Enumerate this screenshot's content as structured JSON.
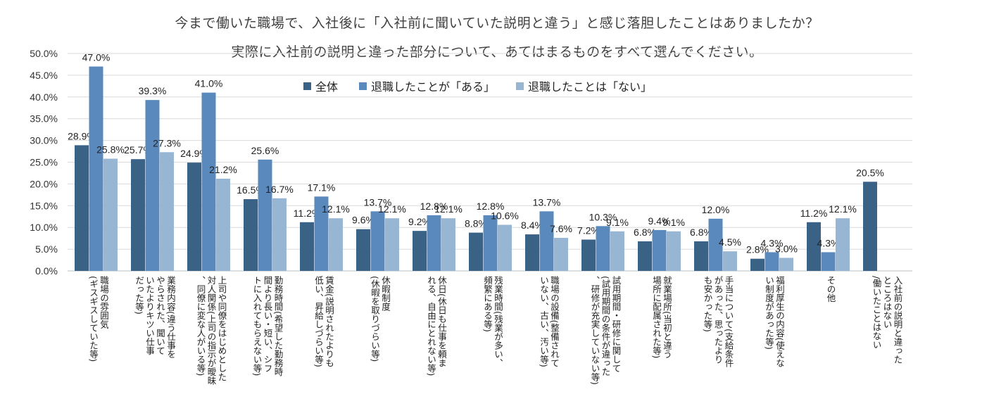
{
  "chart_data": {
    "type": "bar",
    "title": "今まで働いた職場で、入社後に「入社前に聞いていた説明と違う」と感じ落胆したことはありましたか？",
    "subtitle": "実際に入社前の説明と違った部分について、あてはまるものをすべて選んでください。",
    "ylim": [
      0,
      50
    ],
    "yticks": [
      "0.0%",
      "5.0%",
      "10.0%",
      "15.0%",
      "20.0%",
      "25.0%",
      "30.0%",
      "35.0%",
      "40.0%",
      "45.0%",
      "50.0%"
    ],
    "categories": [
      "職場の雰囲気\n(ギスギスしていた等)",
      "業務内容(違う仕事を\nやらされた、聞いて\nいたよりキツい仕事\nだった等)",
      "上司や同僚をはじめとした\n対人関係(上司の指示が曖昧\n、同僚に変な人がいる等)",
      "勤務時間(希望した勤務時\n間より長い・短い、シフ\nトに入れてもらえない等)",
      "賃金(説明されたよりも\n低い、昇給しづらい等)",
      "休暇制度\n(休暇を取りづらい等)",
      "休日(休日も仕事を頼ま\nれる、自由にとれない等)",
      "残業時間(残業が多い、\n頻繁にある等)",
      "職場の設備(整備されて\nいない、古い、汚い等)",
      "試用期間・研修に関して\n(試用期間の条件が違った\n、研修が充実していない等)",
      "就業場所(当初と違う\n場所に配属された等)",
      "手当について(支給条件\nがあった、思ったより\nも安かった等)",
      "福利厚生の内容(使えな\nい制度があった等)",
      "その他",
      "入社前の説明と違った\nところはない\n/働いたことはない"
    ],
    "series": [
      {
        "name": "全体",
        "color": "#3a6186",
        "values": [
          28.9,
          25.7,
          24.9,
          16.5,
          11.2,
          9.6,
          9.2,
          8.8,
          8.4,
          7.2,
          6.8,
          6.8,
          2.8,
          11.2,
          20.5
        ],
        "labels": [
          "28.9%",
          "25.7%",
          "24.9%",
          "16.5%",
          "11.2%",
          "9.6%",
          "9.2%",
          "8.8%",
          "8.4%",
          "7.2%",
          "6.8%",
          "6.8%",
          "2.8%",
          "11.2%",
          "20.5%"
        ]
      },
      {
        "name": "退職したことが「ある」",
        "color": "#5a8abd",
        "values": [
          47.0,
          39.3,
          41.0,
          25.6,
          17.1,
          13.7,
          12.8,
          12.8,
          13.7,
          10.3,
          9.4,
          12.0,
          4.3,
          4.3,
          null
        ],
        "labels": [
          "47.0%",
          "39.3%",
          "41.0%",
          "25.6%",
          "17.1%",
          "13.7%",
          "12.8%",
          "12.8%",
          "13.7%",
          "10.3%",
          "9.4%",
          "12.0%",
          "4.3%",
          "4.3%",
          null
        ]
      },
      {
        "name": "退職したことは「ない」",
        "color": "#97b6d4",
        "values": [
          25.8,
          27.3,
          21.2,
          16.7,
          12.1,
          12.1,
          12.1,
          10.6,
          7.6,
          9.1,
          9.1,
          4.5,
          3.0,
          12.1,
          null
        ],
        "labels": [
          "25.8%",
          "27.3%",
          "21.2%",
          "16.7%",
          "12.1%",
          "12.1%",
          "12.1%",
          "10.6%",
          "7.6%",
          "9.1%",
          "9.1%",
          "4.5%",
          "3.0%",
          "12.1%",
          null
        ]
      }
    ],
    "legend_position": "top-center",
    "grid": true
  }
}
